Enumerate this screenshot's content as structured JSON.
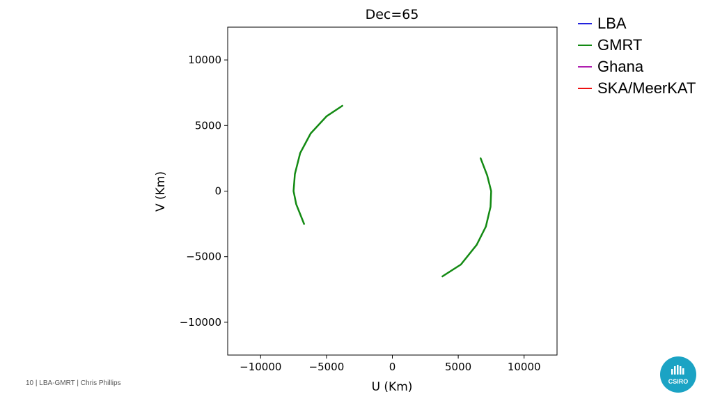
{
  "chart_data": {
    "type": "line",
    "title": "Dec=65",
    "xlabel": "U (Km)",
    "ylabel": "V (Km)",
    "xlim": [
      -12500,
      12500
    ],
    "ylim": [
      -12500,
      12500
    ],
    "xticks": [
      -10000,
      -5000,
      0,
      5000,
      10000
    ],
    "yticks": [
      -10000,
      -5000,
      0,
      5000,
      10000
    ],
    "xtick_labels": [
      "−10000",
      "−5000",
      "0",
      "5000",
      "10000"
    ],
    "ytick_labels": [
      "−10000",
      "−5000",
      "0",
      "5000",
      "10000"
    ],
    "grid": false,
    "legend_placement": "outside top-right",
    "series": [
      {
        "name": "LBA",
        "color": "#2222dd",
        "x": [],
        "y": []
      },
      {
        "name": "GMRT",
        "color": "#138a13",
        "x": [
          -3800,
          -5000,
          -6200,
          -7000,
          -7400,
          -7500,
          -7300,
          -6700,
          null,
          3800,
          5200,
          6400,
          7100,
          7450,
          7500,
          7200,
          6700
        ],
        "y": [
          6500,
          5700,
          4400,
          2900,
          1300,
          0,
          -1000,
          -2500,
          null,
          -6500,
          -5600,
          -4100,
          -2700,
          -1200,
          0,
          1200,
          2500
        ]
      },
      {
        "name": "Ghana",
        "color": "#b01fb0",
        "x": [],
        "y": []
      },
      {
        "name": "SKA/MeerKAT",
        "color": "#ee1111",
        "x": [],
        "y": []
      }
    ]
  },
  "footer": {
    "slide_number": "10",
    "sep1": "|",
    "topic": "LBA-GMRT",
    "sep2": "|",
    "author": "Chris Phillips"
  },
  "logo": {
    "text": "CSIRO",
    "color": "#1ba3c4"
  }
}
